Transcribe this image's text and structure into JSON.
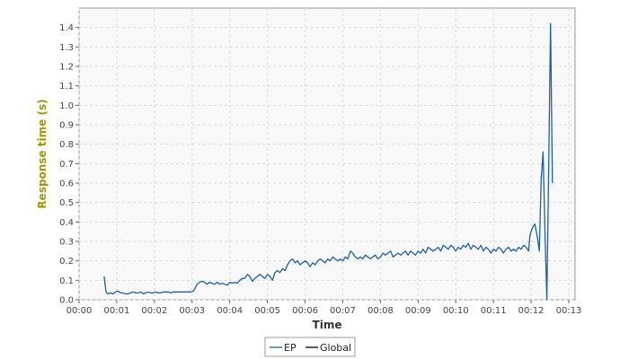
{
  "chart_data": {
    "type": "line",
    "xlabel": "Time",
    "ylabel": "Response time (s)",
    "xlim": [
      0,
      790
    ],
    "ylim": [
      0,
      1.5
    ],
    "x_ticks": [
      {
        "value": 0,
        "label": "00:00"
      },
      {
        "value": 60,
        "label": "00:01"
      },
      {
        "value": 120,
        "label": "00:02"
      },
      {
        "value": 180,
        "label": "00:03"
      },
      {
        "value": 240,
        "label": "00:04"
      },
      {
        "value": 300,
        "label": "00:05"
      },
      {
        "value": 360,
        "label": "00:06"
      },
      {
        "value": 420,
        "label": "00:07"
      },
      {
        "value": 480,
        "label": "00:08"
      },
      {
        "value": 540,
        "label": "00:09"
      },
      {
        "value": 600,
        "label": "00:10"
      },
      {
        "value": 660,
        "label": "00:11"
      },
      {
        "value": 720,
        "label": "00:12"
      },
      {
        "value": 780,
        "label": "00:13"
      }
    ],
    "y_ticks": [
      {
        "value": 0.0,
        "label": "0.0"
      },
      {
        "value": 0.1,
        "label": "0.1"
      },
      {
        "value": 0.2,
        "label": "0.2"
      },
      {
        "value": 0.3,
        "label": "0.3"
      },
      {
        "value": 0.4,
        "label": "0.4"
      },
      {
        "value": 0.5,
        "label": "0.5"
      },
      {
        "value": 0.6,
        "label": "0.6"
      },
      {
        "value": 0.7,
        "label": "0.7"
      },
      {
        "value": 0.8,
        "label": "0.8"
      },
      {
        "value": 0.9,
        "label": "0.9"
      },
      {
        "value": 1.0,
        "label": "1.0"
      },
      {
        "value": 1.1,
        "label": "1.1"
      },
      {
        "value": 1.2,
        "label": "1.2"
      },
      {
        "value": 1.3,
        "label": "1.3"
      },
      {
        "value": 1.4,
        "label": "1.4"
      }
    ],
    "grid": true,
    "legend_position": "bottom-center",
    "colors": {
      "series": "#1f5fa6",
      "ylabel": "#9a9a00",
      "xlabel": "#333333",
      "plot_bg": "#f8f8f8",
      "grid": "#dddddd"
    },
    "legend": [
      {
        "label": "EP",
        "color": "#1f5fa6"
      },
      {
        "label": "Global",
        "color": "#000000"
      }
    ],
    "series": [
      {
        "name": "EP",
        "x": [
          40,
          43,
          46,
          50,
          54,
          58,
          62,
          66,
          70,
          74,
          78,
          82,
          86,
          90,
          94,
          98,
          102,
          106,
          110,
          114,
          118,
          122,
          126,
          130,
          134,
          138,
          142,
          146,
          150,
          154,
          158,
          162,
          166,
          170,
          174,
          178,
          182,
          185,
          188,
          192,
          196,
          200,
          204,
          208,
          212,
          216,
          220,
          224,
          228,
          232,
          236,
          240,
          244,
          248,
          252,
          256,
          260,
          264,
          268,
          272,
          276,
          280,
          284,
          288,
          292,
          296,
          300,
          304,
          308,
          312,
          316,
          320,
          324,
          328,
          332,
          336,
          340,
          344,
          348,
          352,
          356,
          360,
          364,
          368,
          372,
          376,
          380,
          384,
          388,
          392,
          396,
          400,
          404,
          408,
          412,
          416,
          420,
          424,
          428,
          432,
          436,
          440,
          444,
          448,
          452,
          456,
          460,
          464,
          468,
          472,
          476,
          480,
          484,
          488,
          492,
          496,
          500,
          504,
          508,
          512,
          516,
          520,
          524,
          528,
          532,
          536,
          540,
          544,
          548,
          552,
          556,
          560,
          564,
          568,
          572,
          576,
          580,
          584,
          588,
          592,
          596,
          600,
          604,
          608,
          612,
          616,
          620,
          624,
          628,
          632,
          636,
          640,
          644,
          648,
          652,
          656,
          660,
          664,
          668,
          672,
          676,
          680,
          684,
          688,
          692,
          696,
          700,
          704,
          708,
          712,
          716,
          718,
          722,
          726,
          730,
          733,
          736,
          739,
          742,
          745,
          748,
          751,
          754
        ],
        "values": [
          0.12,
          0.04,
          0.03,
          0.035,
          0.03,
          0.04,
          0.045,
          0.035,
          0.035,
          0.03,
          0.03,
          0.035,
          0.04,
          0.035,
          0.035,
          0.04,
          0.03,
          0.035,
          0.04,
          0.035,
          0.035,
          0.04,
          0.035,
          0.035,
          0.04,
          0.04,
          0.04,
          0.035,
          0.04,
          0.04,
          0.04,
          0.04,
          0.04,
          0.04,
          0.04,
          0.04,
          0.045,
          0.06,
          0.08,
          0.09,
          0.095,
          0.09,
          0.08,
          0.09,
          0.085,
          0.08,
          0.09,
          0.08,
          0.085,
          0.08,
          0.075,
          0.09,
          0.085,
          0.09,
          0.085,
          0.1,
          0.11,
          0.11,
          0.13,
          0.12,
          0.095,
          0.11,
          0.12,
          0.13,
          0.12,
          0.11,
          0.13,
          0.12,
          0.1,
          0.14,
          0.15,
          0.14,
          0.16,
          0.15,
          0.18,
          0.2,
          0.21,
          0.19,
          0.2,
          0.18,
          0.19,
          0.2,
          0.19,
          0.17,
          0.19,
          0.18,
          0.2,
          0.21,
          0.2,
          0.19,
          0.21,
          0.2,
          0.22,
          0.21,
          0.2,
          0.21,
          0.2,
          0.22,
          0.21,
          0.25,
          0.24,
          0.22,
          0.21,
          0.22,
          0.21,
          0.23,
          0.22,
          0.21,
          0.22,
          0.23,
          0.21,
          0.22,
          0.24,
          0.23,
          0.24,
          0.25,
          0.22,
          0.23,
          0.24,
          0.23,
          0.24,
          0.25,
          0.23,
          0.25,
          0.24,
          0.23,
          0.25,
          0.24,
          0.26,
          0.24,
          0.27,
          0.26,
          0.25,
          0.26,
          0.27,
          0.25,
          0.28,
          0.27,
          0.26,
          0.28,
          0.27,
          0.25,
          0.27,
          0.26,
          0.28,
          0.27,
          0.29,
          0.26,
          0.28,
          0.27,
          0.26,
          0.28,
          0.25,
          0.27,
          0.26,
          0.24,
          0.26,
          0.25,
          0.27,
          0.26,
          0.24,
          0.26,
          0.27,
          0.25,
          0.26,
          0.25,
          0.27,
          0.26,
          0.28,
          0.27,
          0.25,
          0.33,
          0.37,
          0.39,
          0.32,
          0.25,
          0.62,
          0.76,
          0.35,
          0.0,
          0.7,
          1.42,
          0.6
        ]
      }
    ]
  }
}
